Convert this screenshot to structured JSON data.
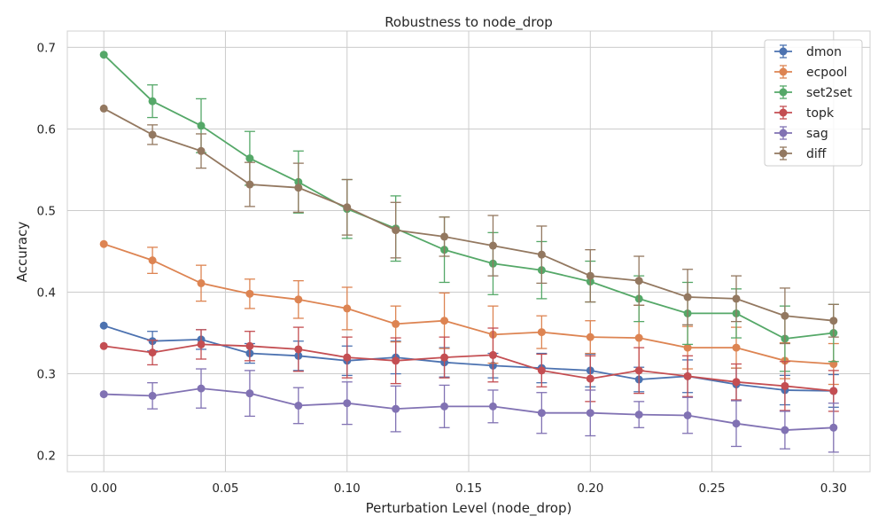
{
  "chart_data": {
    "type": "line",
    "title": "Robustness to node_drop",
    "xlabel": "Perturbation Level (node_drop)",
    "ylabel": "Accuracy",
    "xlim": [
      -0.015,
      0.315
    ],
    "ylim": [
      0.18,
      0.72
    ],
    "x": [
      0.0,
      0.02,
      0.04,
      0.06,
      0.08,
      0.1,
      0.12,
      0.14,
      0.16,
      0.18,
      0.2,
      0.22,
      0.24,
      0.26,
      0.28,
      0.3
    ],
    "x_ticks": [
      0.0,
      0.05,
      0.1,
      0.15,
      0.2,
      0.25,
      0.3
    ],
    "x_tick_labels": [
      "0.00",
      "0.05",
      "0.10",
      "0.15",
      "0.20",
      "0.25",
      "0.30"
    ],
    "y_ticks": [
      0.2,
      0.3,
      0.4,
      0.5,
      0.6,
      0.7
    ],
    "y_tick_labels": [
      "0.2",
      "0.3",
      "0.4",
      "0.5",
      "0.6",
      "0.7"
    ],
    "grid": true,
    "legend_position": "top-right",
    "series": [
      {
        "name": "dmon",
        "color": "#4c72b0",
        "values": [
          0.359,
          0.34,
          0.342,
          0.325,
          0.322,
          0.316,
          0.32,
          0.314,
          0.31,
          0.307,
          0.304,
          0.293,
          0.297,
          0.287,
          0.28,
          0.279
        ],
        "errors": [
          0.0,
          0.012,
          0.012,
          0.012,
          0.018,
          0.018,
          0.02,
          0.018,
          0.015,
          0.018,
          0.02,
          0.015,
          0.02,
          0.02,
          0.018,
          0.02
        ]
      },
      {
        "name": "ecpool",
        "color": "#dd8452",
        "values": [
          0.459,
          0.439,
          0.411,
          0.398,
          0.391,
          0.38,
          0.361,
          0.365,
          0.348,
          0.351,
          0.345,
          0.344,
          0.332,
          0.332,
          0.316,
          0.312
        ],
        "errors": [
          0.0,
          0.016,
          0.022,
          0.018,
          0.023,
          0.026,
          0.022,
          0.034,
          0.035,
          0.02,
          0.02,
          0.04,
          0.026,
          0.025,
          0.022,
          0.025
        ]
      },
      {
        "name": "set2set",
        "color": "#55a868",
        "values": [
          0.691,
          0.634,
          0.604,
          0.564,
          0.535,
          0.502,
          0.478,
          0.452,
          0.435,
          0.427,
          0.413,
          0.392,
          0.374,
          0.374,
          0.343,
          0.35
        ],
        "errors": [
          0.0,
          0.02,
          0.033,
          0.033,
          0.038,
          0.036,
          0.04,
          0.04,
          0.038,
          0.035,
          0.025,
          0.028,
          0.038,
          0.03,
          0.04,
          0.035
        ]
      },
      {
        "name": "topk",
        "color": "#c44e52",
        "values": [
          0.334,
          0.326,
          0.336,
          0.334,
          0.33,
          0.32,
          0.316,
          0.32,
          0.323,
          0.304,
          0.294,
          0.304,
          0.297,
          0.29,
          0.285,
          0.279
        ],
        "errors": [
          0.0,
          0.015,
          0.018,
          0.018,
          0.027,
          0.025,
          0.028,
          0.025,
          0.033,
          0.02,
          0.028,
          0.028,
          0.025,
          0.022,
          0.03,
          0.025
        ]
      },
      {
        "name": "sag",
        "color": "#8172b3",
        "values": [
          0.275,
          0.273,
          0.282,
          0.276,
          0.261,
          0.264,
          0.257,
          0.26,
          0.26,
          0.252,
          0.252,
          0.25,
          0.249,
          0.239,
          0.231,
          0.234
        ],
        "errors": [
          0.0,
          0.016,
          0.024,
          0.028,
          0.022,
          0.026,
          0.028,
          0.026,
          0.02,
          0.025,
          0.028,
          0.016,
          0.022,
          0.028,
          0.023,
          0.03
        ]
      },
      {
        "name": "diff",
        "color": "#937860",
        "values": [
          0.625,
          0.593,
          0.573,
          0.532,
          0.528,
          0.504,
          0.476,
          0.468,
          0.457,
          0.446,
          0.42,
          0.414,
          0.394,
          0.392,
          0.371,
          0.365
        ],
        "errors": [
          0.0,
          0.012,
          0.021,
          0.027,
          0.03,
          0.034,
          0.034,
          0.024,
          0.037,
          0.035,
          0.032,
          0.03,
          0.034,
          0.028,
          0.034,
          0.02
        ]
      }
    ]
  }
}
